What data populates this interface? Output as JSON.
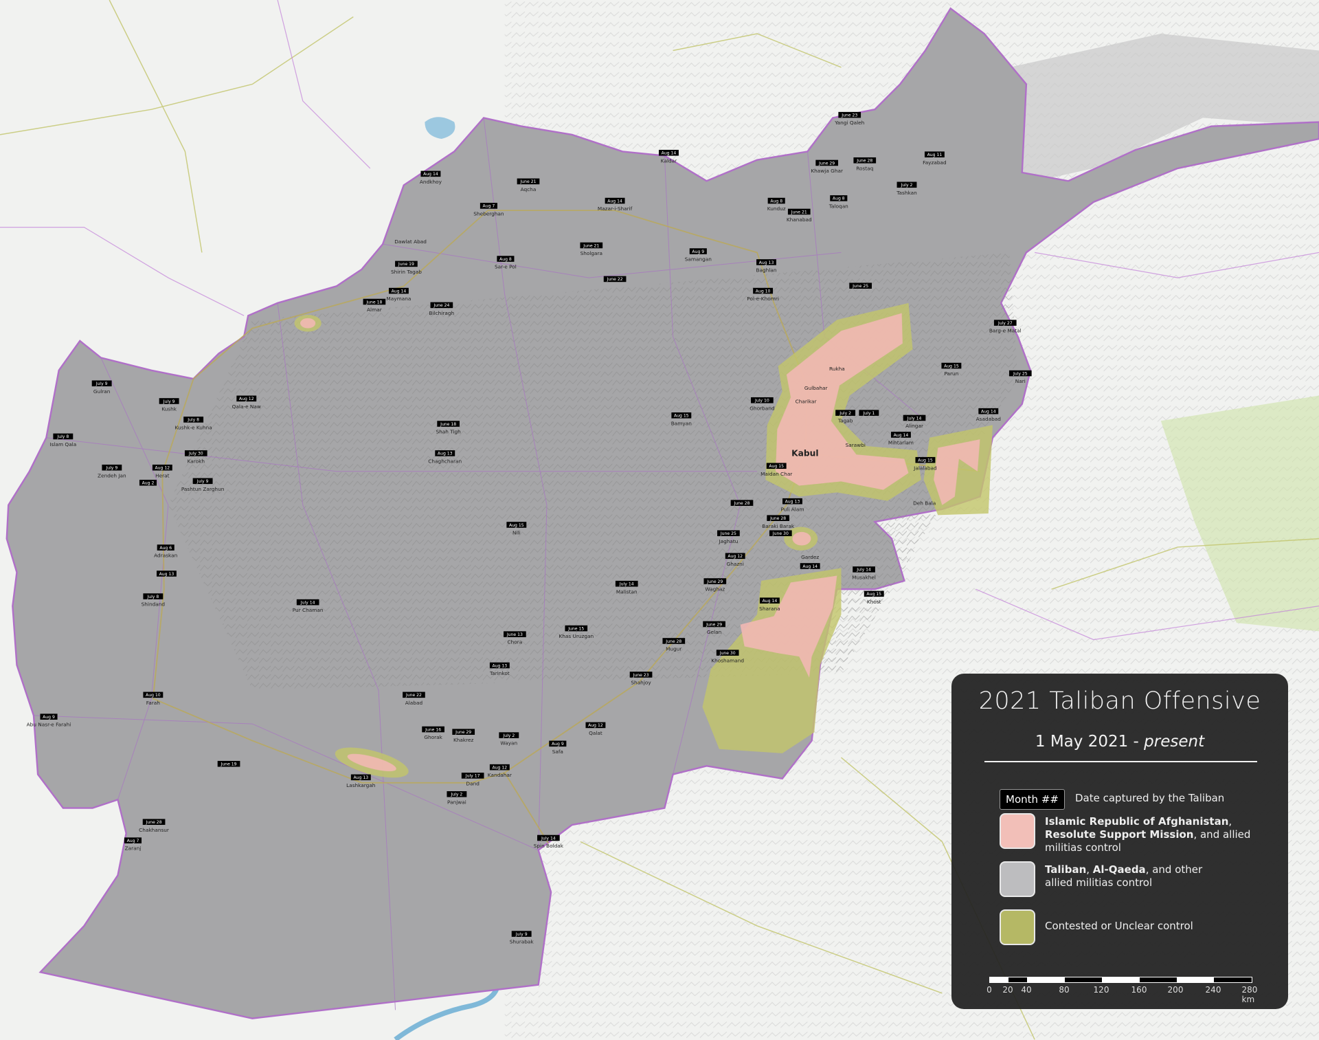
{
  "legend": {
    "title": "2021 Taliban Offensive",
    "subtitle_date": "1 May 2021 - ",
    "subtitle_italic": "present",
    "month_box": "Month ##",
    "month_desc": "Date captured by the Taliban",
    "gov_bold1": "Islamic Republic of Afghanistan",
    "gov_sep1": ", ",
    "gov_bold2": "Resolute Support Mission",
    "gov_rest": ", and allied militias control",
    "taliban_bold1": "Taliban",
    "taliban_sep": ", ",
    "taliban_bold2": "Al-Qaeda",
    "taliban_rest": ", and other allied militias control",
    "contested": "Contested or Unclear control",
    "scale_labels": [
      "0",
      "20",
      "40",
      "80",
      "120",
      "160",
      "200",
      "240",
      "280 km"
    ]
  },
  "colors": {
    "government": "#f2b8b4",
    "taliban": "#9e9e9e",
    "contested": "#c3c66a",
    "border": "#b070c8",
    "legend_bg": "#202020"
  },
  "cities": [
    {
      "name": "Andkhoy",
      "date": "Aug 14"
    },
    {
      "name": "Aqcha",
      "date": "June 21"
    },
    {
      "name": "Sheberghan",
      "date": "Aug 7"
    },
    {
      "name": "Mazar-i-Sharif",
      "date": "Aug 14"
    },
    {
      "name": "Kunduz",
      "date": "Aug 8"
    },
    {
      "name": "Khanabad",
      "date": "June 21"
    },
    {
      "name": "Taloqan",
      "date": "Aug 8"
    },
    {
      "name": "Rostaq",
      "date": "June 28"
    },
    {
      "name": "Khawja Ghar",
      "date": "June 29"
    },
    {
      "name": "Yangi Qaleh",
      "date": "June 23"
    },
    {
      "name": "Fayzabad",
      "date": "Aug 11"
    },
    {
      "name": "Tashkan",
      "date": "July 2"
    },
    {
      "name": "Kaldar",
      "date": "Aug 14"
    },
    {
      "name": "Sholgara",
      "date": "June 21"
    },
    {
      "name": "Sar-e Pol",
      "date": "Aug 8"
    },
    {
      "name": "Dawlat Abad",
      "date": ""
    },
    {
      "name": "Shirin Tagab",
      "date": "June 19"
    },
    {
      "name": "Maymana",
      "date": "Aug 14"
    },
    {
      "name": "Almar",
      "date": "June 18"
    },
    {
      "name": "Bilchiragh",
      "date": "June 24"
    },
    {
      "name": "Samangan",
      "date": "Aug 9"
    },
    {
      "name": "Baghlan",
      "date": "Aug 13"
    },
    {
      "name": "Pol-e-Khomri",
      "date": "Aug 10"
    },
    {
      "name": "",
      "date": "June 22"
    },
    {
      "name": "",
      "date": "June 25"
    },
    {
      "name": "Barg-e Matal",
      "date": "July 27"
    },
    {
      "name": "Parun",
      "date": "Aug 15"
    },
    {
      "name": "Nari",
      "date": "July 25"
    },
    {
      "name": "Asadabad",
      "date": "Aug 14"
    },
    {
      "name": "Rukha",
      "date": ""
    },
    {
      "name": "Gulbahar",
      "date": ""
    },
    {
      "name": "Charikar",
      "date": ""
    },
    {
      "name": "Ghorband",
      "date": "July 10"
    },
    {
      "name": "Tagab",
      "date": "July 2"
    },
    {
      "name": "",
      "date": "July 1"
    },
    {
      "name": "Alingar",
      "date": "July 14"
    },
    {
      "name": "Mihtarlam",
      "date": "Aug 14"
    },
    {
      "name": "Sarawbi",
      "date": ""
    },
    {
      "name": "Kabul",
      "date": ""
    },
    {
      "name": "Jalalabad",
      "date": "Aug 15"
    },
    {
      "name": "Deh Bala",
      "date": ""
    },
    {
      "name": "Maidan Char",
      "date": "Aug 15"
    },
    {
      "name": "Bamyan",
      "date": "Aug 15"
    },
    {
      "name": "Shah Tigh",
      "date": "June 18"
    },
    {
      "name": "Chaghcharan",
      "date": "Aug 13"
    },
    {
      "name": "Qala-e Naw",
      "date": "Aug 12"
    },
    {
      "name": "Gulran",
      "date": "July 9"
    },
    {
      "name": "Kushk",
      "date": "July 9"
    },
    {
      "name": "Kushk-e Kuhna",
      "date": "July 8"
    },
    {
      "name": "Islam Qala",
      "date": "July 8"
    },
    {
      "name": "Zendeh Jan",
      "date": "July 9"
    },
    {
      "name": "Herat",
      "date": "Aug 12"
    },
    {
      "name": "Karokh",
      "date": "July 30"
    },
    {
      "name": "Pashtun Zarghun",
      "date": "July 9"
    },
    {
      "name": "",
      "date": "Aug 2"
    },
    {
      "name": "Nili",
      "date": "Aug 15"
    },
    {
      "name": "Adraskan",
      "date": "Aug 6"
    },
    {
      "name": "",
      "date": "Aug 13"
    },
    {
      "name": "Shindand",
      "date": "July 8"
    },
    {
      "name": "Pur Chaman",
      "date": "July 14"
    },
    {
      "name": "Puli Alam",
      "date": "Aug 13"
    },
    {
      "name": "Baraki Barak",
      "date": "June 28"
    },
    {
      "name": "",
      "date": "June 28"
    },
    {
      "name": "",
      "date": "June 30"
    },
    {
      "name": "Jaghatu",
      "date": "June 25"
    },
    {
      "name": "Gardez",
      "date": ""
    },
    {
      "name": "Ghazni",
      "date": "Aug 12"
    },
    {
      "name": "Waghaz",
      "date": "June 29"
    },
    {
      "name": "",
      "date": "Aug 14"
    },
    {
      "name": "Musakhel",
      "date": "July 14"
    },
    {
      "name": "Khost",
      "date": "Aug 15"
    },
    {
      "name": "Sharana",
      "date": "Aug 14"
    },
    {
      "name": "Malistan",
      "date": "July 14"
    },
    {
      "name": "Chora",
      "date": "June 13"
    },
    {
      "name": "Khas Uruzgan",
      "date": "June 15"
    },
    {
      "name": "Gelan",
      "date": "June 29"
    },
    {
      "name": "Mugur",
      "date": "June 28"
    },
    {
      "name": "Khoshamand",
      "date": "June 30"
    },
    {
      "name": "Tarinkot",
      "date": "Aug 13"
    },
    {
      "name": "Shahjoy",
      "date": "June 23"
    },
    {
      "name": "Farah",
      "date": "Aug 10"
    },
    {
      "name": "Alabad",
      "date": "June 22"
    },
    {
      "name": "Abu Nasr-e Farahi",
      "date": "Aug 9"
    },
    {
      "name": "Ghorak",
      "date": "June 16"
    },
    {
      "name": "Khakrez",
      "date": "June 29"
    },
    {
      "name": "Wayan",
      "date": "July 2"
    },
    {
      "name": "Qalat",
      "date": "Aug 12"
    },
    {
      "name": "Safa",
      "date": "Aug 9"
    },
    {
      "name": "Dand",
      "date": "July 17"
    },
    {
      "name": "Panjwai",
      "date": "July 2"
    },
    {
      "name": "Kandahar",
      "date": "Aug 12"
    },
    {
      "name": "Lashkargah",
      "date": "Aug 13"
    },
    {
      "name": "",
      "date": "June 19"
    },
    {
      "name": "Chakhansur",
      "date": "June 28"
    },
    {
      "name": "Zaranj",
      "date": "Aug 7"
    },
    {
      "name": "Spin Boldak",
      "date": "July 14"
    },
    {
      "name": "Shurabak",
      "date": "July 9"
    }
  ]
}
